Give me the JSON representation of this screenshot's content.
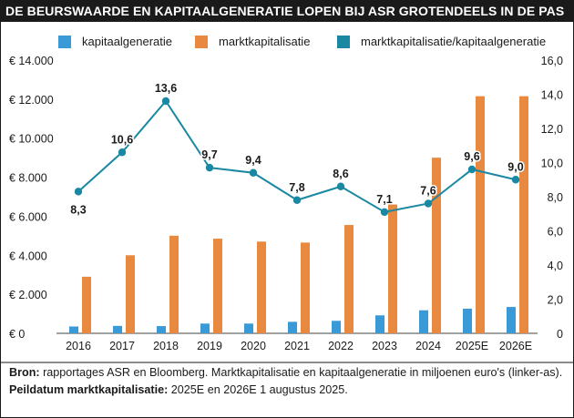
{
  "title": "DE BEURSWAARDE EN KAPITAALGENERATIE LOPEN BIJ ASR GROTENDEELS IN DE PAS",
  "colors": {
    "kapitaalgeneratie": "#3a9ad8",
    "marktkapitalisatie": "#e8893f",
    "ratio": "#1a88a3",
    "titlebar": "#1a1a1a"
  },
  "legend": [
    {
      "label": "kapitaalgeneratie",
      "color": "#3a9ad8"
    },
    {
      "label": "marktkapitalisatie",
      "color": "#e8893f"
    },
    {
      "label": "marktkapitalisatie/kapitaalgeneratie",
      "color": "#1a88a3"
    }
  ],
  "chart_data": {
    "type": "bar",
    "categories": [
      "2016",
      "2017",
      "2018",
      "2019",
      "2020",
      "2021",
      "2022",
      "2023",
      "2024",
      "2025E",
      "2026E"
    ],
    "series": [
      {
        "name": "kapitaalgeneratie",
        "type": "bar",
        "axis": "left",
        "values": [
          350,
          380,
          370,
          500,
          500,
          590,
          640,
          920,
          1180,
          1260,
          1350
        ]
      },
      {
        "name": "marktkapitalisatie",
        "type": "bar",
        "axis": "left",
        "values": [
          2900,
          4000,
          5000,
          4850,
          4700,
          4650,
          5550,
          6600,
          9000,
          12150,
          12150
        ]
      },
      {
        "name": "marktkapitalisatie/kapitaalgeneratie",
        "type": "line",
        "axis": "right",
        "values": [
          8.3,
          10.6,
          13.6,
          9.7,
          9.4,
          7.8,
          8.6,
          7.1,
          7.6,
          9.6,
          9.0
        ],
        "data_labels": [
          "8,3",
          "10,6",
          "13,6",
          "9,7",
          "9,4",
          "7,8",
          "8,6",
          "7,1",
          "7,6",
          "9,6",
          "9,0"
        ]
      }
    ],
    "left_axis": {
      "ylim": [
        0,
        14000
      ],
      "ticks": [
        0,
        2000,
        4000,
        6000,
        8000,
        10000,
        12000,
        14000
      ],
      "tick_labels": [
        "€ 0",
        "€ 2.000",
        "€ 4.000",
        "€ 6.000",
        "€ 8.000",
        "€ 10.000",
        "€ 12.000",
        "€ 14.000"
      ]
    },
    "right_axis": {
      "ylim": [
        0,
        16
      ],
      "ticks": [
        0,
        2,
        4,
        6,
        8,
        10,
        12,
        14,
        16
      ],
      "tick_labels": [
        "0",
        "2,0",
        "4,0",
        "6,0",
        "8,0",
        "10,0",
        "12,0",
        "14,0",
        "16,0"
      ]
    },
    "grid": false,
    "legend_position": "top"
  },
  "footer": {
    "source_label": "Bron:",
    "source_text": " rapportages ASR en Bloomberg. Marktkapitalisatie en kapitaalgeneratie in miljoenen euro's (linker-as). ",
    "date_label": "Peildatum marktkapitalisatie:",
    "date_text": " 2025E en 2026E 1 augustus 2025."
  }
}
